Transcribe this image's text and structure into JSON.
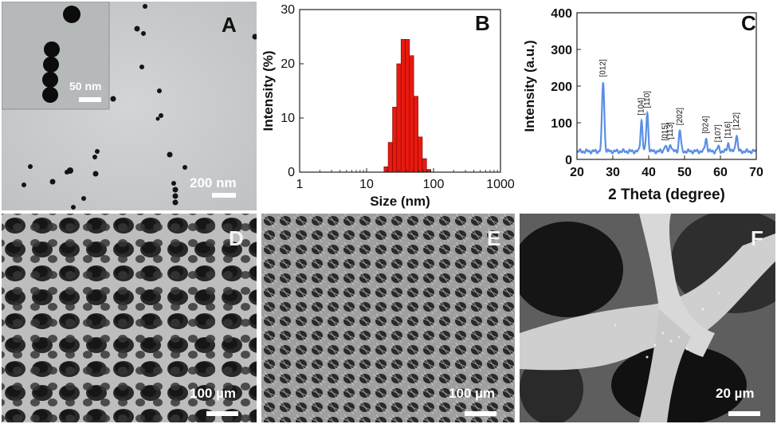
{
  "figure": {
    "panels": {
      "A": {
        "label": "A",
        "scale_main": "200 nm",
        "scale_inset": "50 nm"
      },
      "B": {
        "label": "B"
      },
      "C": {
        "label": "C"
      },
      "D": {
        "label": "D",
        "scale": "100 µm"
      },
      "E": {
        "label": "E",
        "scale": "100 µm"
      },
      "F": {
        "label": "F",
        "scale": "20 µm"
      }
    }
  },
  "chart_data": [
    {
      "id": "B",
      "type": "bar",
      "xlabel": "Size (nm)",
      "ylabel": "Intensity (%)",
      "x_scale": "log",
      "xlim": [
        1,
        1000
      ],
      "ylim": [
        0,
        30
      ],
      "x_ticks": [
        "1",
        "10",
        "100",
        "1000"
      ],
      "y_ticks": [
        "0",
        "10",
        "20",
        "30"
      ],
      "bar_color": "#e8190f",
      "bins": [
        {
          "x0": 18.2,
          "x1": 21.0,
          "value": 1.0
        },
        {
          "x0": 21.0,
          "x1": 24.4,
          "value": 5.5
        },
        {
          "x0": 24.4,
          "x1": 28.2,
          "value": 12.0
        },
        {
          "x0": 28.2,
          "x1": 32.7,
          "value": 20.0
        },
        {
          "x0": 32.7,
          "x1": 37.8,
          "value": 24.5
        },
        {
          "x0": 37.8,
          "x1": 43.8,
          "value": 24.5
        },
        {
          "x0": 43.8,
          "x1": 50.7,
          "value": 21.5
        },
        {
          "x0": 50.7,
          "x1": 58.8,
          "value": 14.0
        },
        {
          "x0": 58.8,
          "x1": 68.1,
          "value": 6.5
        },
        {
          "x0": 68.1,
          "x1": 78.8,
          "value": 2.5
        },
        {
          "x0": 78.8,
          "x1": 91.3,
          "value": 0.5
        }
      ]
    },
    {
      "id": "C",
      "type": "line",
      "xlabel": "2 Theta (degree)",
      "ylabel": "Intensity (a.u.)",
      "xlim": [
        20,
        70
      ],
      "ylim": [
        0,
        400
      ],
      "x_ticks": [
        "20",
        "30",
        "40",
        "50",
        "60",
        "70"
      ],
      "y_ticks": [
        "0",
        "100",
        "200",
        "300",
        "400"
      ],
      "line_color": "#5b8fe6",
      "baseline": 22,
      "peaks": [
        {
          "x": 27.3,
          "h": 190,
          "w": 0.45,
          "label": "[012]"
        },
        {
          "x": 38.0,
          "h": 85,
          "w": 0.4,
          "label": "[104]"
        },
        {
          "x": 39.6,
          "h": 105,
          "w": 0.4,
          "label": "[110]"
        },
        {
          "x": 44.6,
          "h": 16,
          "w": 0.4,
          "label": "[015]"
        },
        {
          "x": 46.1,
          "h": 20,
          "w": 0.4,
          "label": "[113]"
        },
        {
          "x": 48.7,
          "h": 58,
          "w": 0.4,
          "label": "[202]"
        },
        {
          "x": 56.0,
          "h": 35,
          "w": 0.4,
          "label": "[024]"
        },
        {
          "x": 59.4,
          "h": 12,
          "w": 0.4,
          "label": "[107]"
        },
        {
          "x": 62.2,
          "h": 22,
          "w": 0.4,
          "label": "[116]"
        },
        {
          "x": 64.5,
          "h": 45,
          "w": 0.4,
          "label": "[122]"
        }
      ]
    }
  ]
}
